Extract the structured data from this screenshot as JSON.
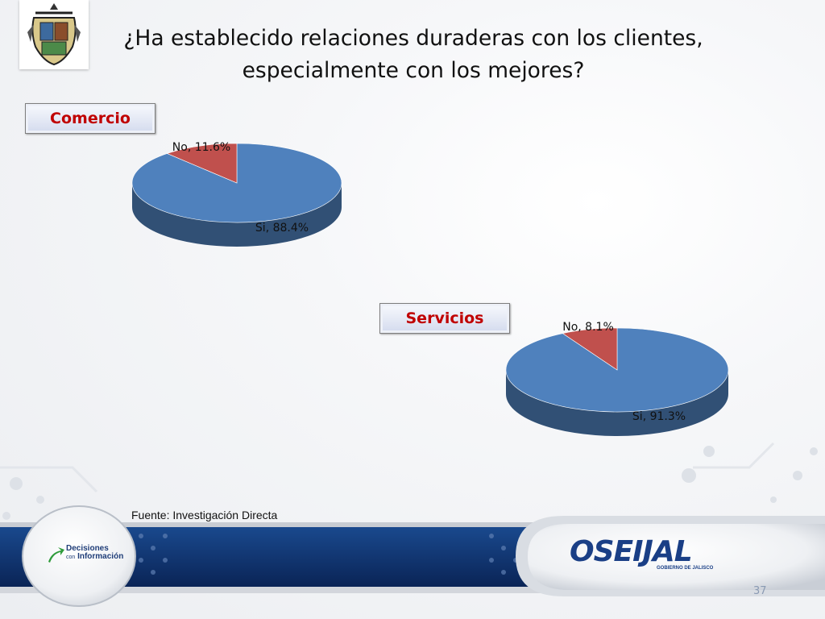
{
  "slide": {
    "title_line1": "¿Ha establecido relaciones duraderas con los clientes,",
    "title_line2": "especialmente con los mejores?",
    "source": "Fuente: Investigación Directa",
    "page_number": "37",
    "left_logo_text_line1": "Decisiones",
    "left_logo_text_line2": "con",
    "left_logo_text_line3": "Información",
    "right_logo_text": "OSEIJAL",
    "right_logo_subtext": "GOBIERNO DE JALISCO"
  },
  "colors": {
    "si": "#4f81bd",
    "no": "#c0504d",
    "label_text": "#c00000",
    "banner": "#0d2f6a"
  },
  "chart_data": [
    {
      "type": "pie",
      "title": "Comercio",
      "categories": [
        "Si",
        "No"
      ],
      "values": [
        88.4,
        11.6
      ],
      "data_labels": [
        "Si, 88.4%",
        "No, 11.6%"
      ]
    },
    {
      "type": "pie",
      "title": "Servicios",
      "categories": [
        "Si",
        "No"
      ],
      "values": [
        91.3,
        8.1
      ],
      "data_labels": [
        "Si, 91.3%",
        "No, 8.1%"
      ]
    }
  ]
}
